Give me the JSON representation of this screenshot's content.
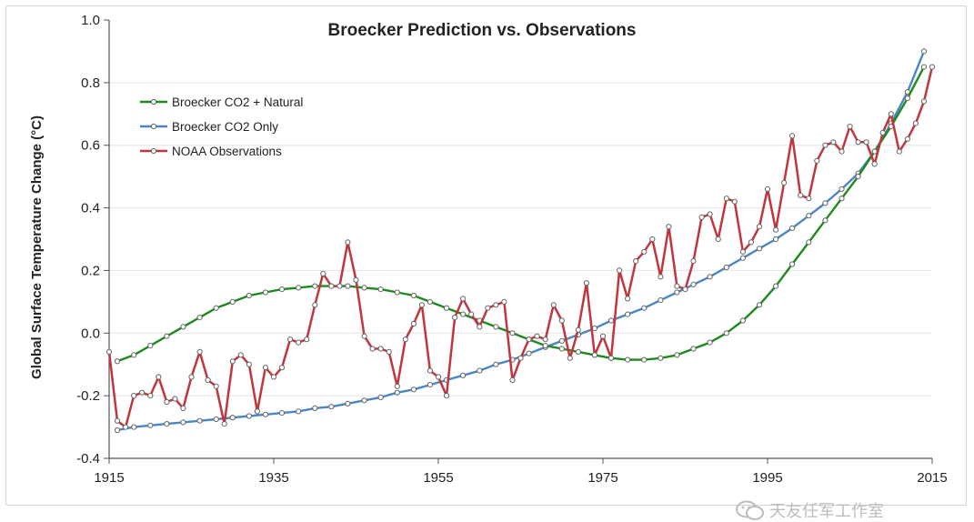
{
  "chart_data": {
    "type": "line",
    "title": "Broecker Prediction vs. Observations",
    "ylabel": "Global Surface Temperature Change (°C)",
    "xlabel": "",
    "xlim": [
      1915,
      2015
    ],
    "ylim": [
      -0.4,
      1.0
    ],
    "x_ticks": [
      "1915",
      "1935",
      "1955",
      "1975",
      "1995",
      "2015"
    ],
    "y_ticks": [
      "-0.4",
      "-0.2",
      "0.0",
      "0.2",
      "0.4",
      "0.6",
      "0.8",
      "1.0"
    ],
    "legend_position": "top-left",
    "series": [
      {
        "name": "Broecker CO2 + Natural",
        "color": "#1e8a1e",
        "x": [
          1916,
          1918,
          1920,
          1922,
          1924,
          1926,
          1928,
          1930,
          1932,
          1934,
          1936,
          1938,
          1940,
          1942,
          1944,
          1946,
          1948,
          1950,
          1952,
          1954,
          1956,
          1958,
          1960,
          1962,
          1964,
          1966,
          1968,
          1970,
          1972,
          1974,
          1976,
          1978,
          1980,
          1982,
          1984,
          1986,
          1988,
          1990,
          1992,
          1994,
          1996,
          1998,
          2000,
          2002,
          2004,
          2006,
          2008,
          2010,
          2012,
          2014
        ],
        "y": [
          -0.09,
          -0.07,
          -0.04,
          -0.01,
          0.02,
          0.05,
          0.08,
          0.1,
          0.12,
          0.13,
          0.14,
          0.145,
          0.15,
          0.15,
          0.15,
          0.145,
          0.14,
          0.13,
          0.12,
          0.1,
          0.08,
          0.06,
          0.04,
          0.02,
          0.0,
          -0.02,
          -0.04,
          -0.05,
          -0.06,
          -0.07,
          -0.08,
          -0.085,
          -0.085,
          -0.08,
          -0.07,
          -0.05,
          -0.03,
          0.0,
          0.04,
          0.09,
          0.15,
          0.22,
          0.29,
          0.36,
          0.43,
          0.5,
          0.58,
          0.66,
          0.75,
          0.85
        ]
      },
      {
        "name": "Broecker CO2 Only",
        "color": "#4a86c5",
        "x": [
          1916,
          1918,
          1920,
          1922,
          1924,
          1926,
          1928,
          1930,
          1932,
          1934,
          1936,
          1938,
          1940,
          1942,
          1944,
          1946,
          1948,
          1950,
          1952,
          1954,
          1956,
          1958,
          1960,
          1962,
          1964,
          1966,
          1968,
          1970,
          1972,
          1974,
          1976,
          1978,
          1980,
          1982,
          1984,
          1986,
          1988,
          1990,
          1992,
          1994,
          1996,
          1998,
          2000,
          2002,
          2004,
          2006,
          2008,
          2010,
          2012,
          2014
        ],
        "y": [
          -0.31,
          -0.3,
          -0.295,
          -0.29,
          -0.285,
          -0.28,
          -0.275,
          -0.27,
          -0.265,
          -0.26,
          -0.255,
          -0.25,
          -0.24,
          -0.235,
          -0.225,
          -0.215,
          -0.205,
          -0.19,
          -0.18,
          -0.165,
          -0.15,
          -0.135,
          -0.12,
          -0.1,
          -0.085,
          -0.065,
          -0.045,
          -0.025,
          -0.005,
          0.015,
          0.04,
          0.06,
          0.08,
          0.105,
          0.13,
          0.155,
          0.18,
          0.21,
          0.24,
          0.27,
          0.3,
          0.335,
          0.375,
          0.415,
          0.46,
          0.51,
          0.58,
          0.67,
          0.77,
          0.9
        ]
      },
      {
        "name": "NOAA Observations",
        "color": "#c0363d",
        "x": [
          1915,
          1916,
          1917,
          1918,
          1919,
          1920,
          1921,
          1922,
          1923,
          1924,
          1925,
          1926,
          1927,
          1928,
          1929,
          1930,
          1931,
          1932,
          1933,
          1934,
          1935,
          1936,
          1937,
          1938,
          1939,
          1940,
          1941,
          1942,
          1943,
          1944,
          1945,
          1946,
          1947,
          1948,
          1949,
          1950,
          1951,
          1952,
          1953,
          1954,
          1955,
          1956,
          1957,
          1958,
          1959,
          1960,
          1961,
          1962,
          1963,
          1964,
          1965,
          1966,
          1967,
          1968,
          1969,
          1970,
          1971,
          1972,
          1973,
          1974,
          1975,
          1976,
          1977,
          1978,
          1979,
          1980,
          1981,
          1982,
          1983,
          1984,
          1985,
          1986,
          1987,
          1988,
          1989,
          1990,
          1991,
          1992,
          1993,
          1994,
          1995,
          1996,
          1997,
          1998,
          1999,
          2000,
          2001,
          2002,
          2003,
          2004,
          2005,
          2006,
          2007,
          2008,
          2009,
          2010,
          2011,
          2012,
          2013,
          2014,
          2015
        ],
        "y": [
          -0.06,
          -0.28,
          -0.3,
          -0.2,
          -0.19,
          -0.2,
          -0.14,
          -0.22,
          -0.21,
          -0.24,
          -0.14,
          -0.06,
          -0.15,
          -0.17,
          -0.29,
          -0.09,
          -0.07,
          -0.1,
          -0.25,
          -0.11,
          -0.14,
          -0.11,
          -0.02,
          -0.03,
          -0.02,
          0.09,
          0.19,
          0.15,
          0.15,
          0.29,
          0.17,
          -0.01,
          -0.05,
          -0.05,
          -0.06,
          -0.17,
          -0.02,
          0.03,
          0.09,
          -0.12,
          -0.14,
          -0.2,
          0.05,
          0.11,
          0.06,
          0.02,
          0.08,
          0.09,
          0.1,
          -0.15,
          -0.08,
          -0.02,
          -0.01,
          -0.02,
          0.09,
          0.04,
          -0.08,
          0.01,
          0.16,
          -0.07,
          -0.01,
          -0.08,
          0.2,
          0.11,
          0.23,
          0.26,
          0.3,
          0.18,
          0.34,
          0.15,
          0.14,
          0.23,
          0.37,
          0.38,
          0.3,
          0.43,
          0.42,
          0.26,
          0.29,
          0.34,
          0.46,
          0.33,
          0.48,
          0.63,
          0.44,
          0.43,
          0.55,
          0.6,
          0.61,
          0.58,
          0.66,
          0.61,
          0.61,
          0.54,
          0.64,
          0.7,
          0.58,
          0.62,
          0.67,
          0.74,
          0.85
        ]
      }
    ]
  },
  "watermark": "天友任军工作室",
  "watermark_icon": "wechat-icon"
}
